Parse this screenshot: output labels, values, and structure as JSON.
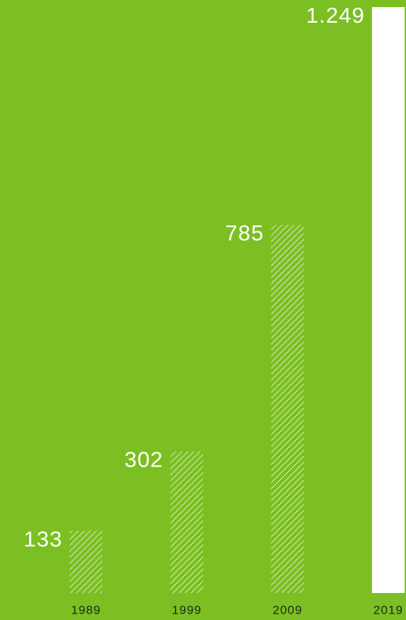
{
  "chart_data": {
    "type": "bar",
    "categories": [
      "1989",
      "1999",
      "2009",
      "2019"
    ],
    "values": [
      133,
      302,
      785,
      1249
    ],
    "value_labels": [
      "133",
      "302",
      "785",
      "1.249"
    ],
    "color": "#ffffff",
    "bar_fills": [
      "hatched",
      "hatched",
      "hatched",
      "solid"
    ]
  }
}
